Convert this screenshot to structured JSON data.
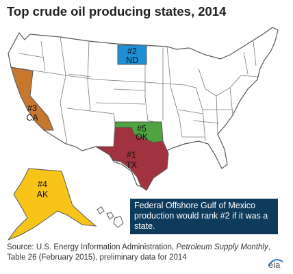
{
  "title": "Top crude oil producing states, 2014",
  "states": [
    {
      "state": "ND",
      "rank": "#2",
      "color": "#1e90d6"
    },
    {
      "state": "CA",
      "rank": "#3",
      "color": "#c8772e"
    },
    {
      "state": "OK",
      "rank": "#5",
      "color": "#4ea43f"
    },
    {
      "state": "TX",
      "rank": "#1",
      "color": "#a2323d"
    },
    {
      "state": "AK",
      "rank": "#4",
      "color": "#f8c417"
    }
  ],
  "callout": "Federal Offshore Gulf of Mexico production would rank #2 if it was a state.",
  "source": {
    "prefix": "Source: U.S. Energy Information Administration, ",
    "publication": "Petroleum Supply Monthly",
    "suffix": ", Table 26 (February 2015), preliminary data for 2014"
  },
  "logo": "eia"
}
